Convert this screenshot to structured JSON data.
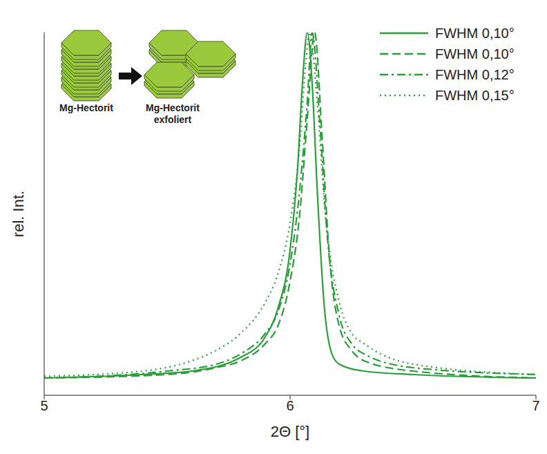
{
  "chart_data": {
    "type": "line",
    "x_label": "2Θ [°]",
    "y_label": "rel. Int.",
    "xlim": [
      5,
      7
    ],
    "xticks": [
      5,
      6,
      7
    ],
    "ylim": [
      -0.05,
      1
    ],
    "yticks": [],
    "tick_labels": "x",
    "grid": false,
    "legend": "upper right",
    "annotations": [
      "Mg-Hectorit",
      "Mg-Hectorit exfoliert"
    ],
    "series": [
      {
        "name": "FWHM 0,10°",
        "color": "#2a9d3a",
        "line_style": "solid",
        "x": [
          5.0,
          5.4,
          5.6,
          5.8,
          5.9,
          5.95,
          6.0,
          6.03,
          6.05,
          6.07,
          6.09,
          6.11,
          6.14,
          6.17,
          6.2,
          6.3,
          6.5,
          7.0
        ],
        "values": [
          0,
          0.01,
          0.02,
          0.06,
          0.12,
          0.2,
          0.37,
          0.6,
          0.85,
          1.0,
          0.85,
          0.55,
          0.2,
          0.07,
          0.04,
          0.02,
          0.01,
          0
        ]
      },
      {
        "name": "FWHM 0,10°",
        "color": "#2a9d3a",
        "line_style": "dashed",
        "x": [
          5.0,
          5.5,
          5.7,
          5.8,
          5.9,
          5.95,
          6.0,
          6.04,
          6.07,
          6.1,
          6.13,
          6.16,
          6.2,
          6.25,
          6.3,
          6.5,
          7.0
        ],
        "values": [
          0,
          0.01,
          0.03,
          0.05,
          0.1,
          0.15,
          0.28,
          0.48,
          0.75,
          1.0,
          0.7,
          0.35,
          0.15,
          0.08,
          0.05,
          0.02,
          0
        ]
      },
      {
        "name": "FWHM 0,12°",
        "color": "#2a9d3a",
        "line_style": "dashdot",
        "x": [
          5.0,
          5.5,
          5.7,
          5.8,
          5.9,
          5.95,
          6.0,
          6.04,
          6.07,
          6.09,
          6.12,
          6.15,
          6.2,
          6.25,
          6.3,
          6.5,
          7.0
        ],
        "values": [
          0,
          0.02,
          0.04,
          0.07,
          0.13,
          0.19,
          0.33,
          0.55,
          0.8,
          1.0,
          0.75,
          0.42,
          0.18,
          0.1,
          0.07,
          0.03,
          0.01
        ]
      },
      {
        "name": "FWHM 0,15°",
        "color": "#2a9d3a",
        "line_style": "dotted",
        "x": [
          5.0,
          5.4,
          5.6,
          5.7,
          5.8,
          5.9,
          5.95,
          6.0,
          6.04,
          6.06,
          6.08,
          6.11,
          6.14,
          6.2,
          6.25,
          6.3,
          6.5,
          7.0
        ],
        "values": [
          0.005,
          0.02,
          0.05,
          0.08,
          0.13,
          0.22,
          0.3,
          0.45,
          0.68,
          0.88,
          1.0,
          0.8,
          0.5,
          0.22,
          0.13,
          0.1,
          0.04,
          0.01
        ]
      }
    ]
  }
}
